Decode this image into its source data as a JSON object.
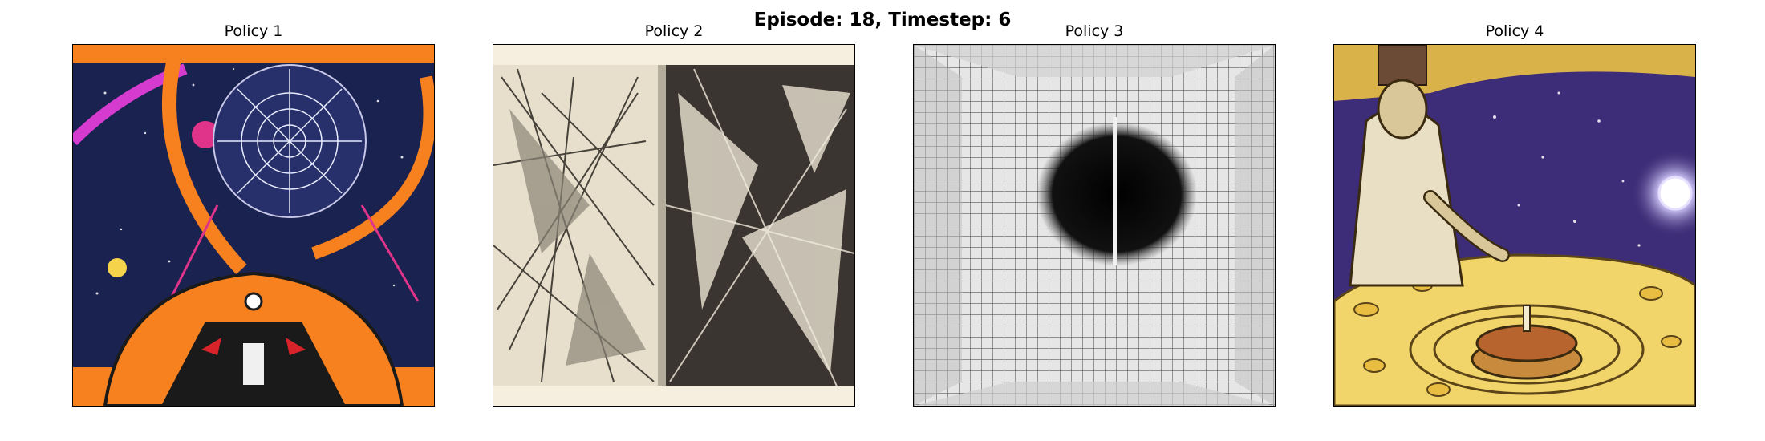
{
  "figure": {
    "suptitle": "Episode: 18, Timestep: 6"
  },
  "panels": [
    {
      "title": "Policy 1",
      "image_icon": "space-spaceship-painting-image"
    },
    {
      "title": "Policy 2",
      "image_icon": "cubist-sketch-book-image"
    },
    {
      "title": "Policy 3",
      "image_icon": "grid-black-hole-image"
    },
    {
      "title": "Policy 4",
      "image_icon": "chef-cosmic-cake-image"
    }
  ],
  "colors": {
    "orange": "#f7801f",
    "space_navy": "#1a2250",
    "magenta": "#d63bd0",
    "paper": "#efe7d6",
    "gold": "#f2d56a",
    "cosmos_purple": "#3d2d78"
  }
}
